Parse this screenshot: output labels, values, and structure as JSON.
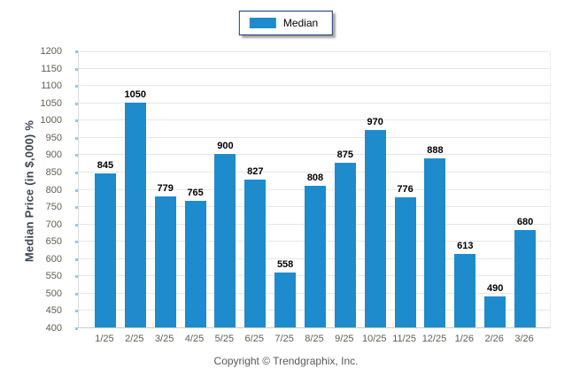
{
  "legend": {
    "items": [
      {
        "label": "Median",
        "color": "#1e8bcd"
      }
    ]
  },
  "footer": {
    "copyright": "Copyright © Trendgraphix, Inc."
  },
  "chart_data": {
    "type": "bar",
    "title": "",
    "categories": [
      "1/25",
      "2/25",
      "3/25",
      "4/25",
      "5/25",
      "6/25",
      "7/25",
      "8/25",
      "9/25",
      "10/25",
      "11/25",
      "12/25",
      "1/26",
      "2/26",
      "3/26"
    ],
    "series": [
      {
        "name": "Median",
        "values": [
          845,
          1050,
          779,
          765,
          900,
          827,
          558,
          808,
          875,
          970,
          776,
          888,
          613,
          490,
          680
        ]
      }
    ],
    "xlabel": "",
    "ylabel": "Median Price (in $,000) %",
    "ylim": [
      400,
      1200
    ],
    "ytick_step": 50,
    "grid": true,
    "value_labels": true,
    "legend_position": "top-center",
    "colors": {
      "bar": "#1e8bcd",
      "grid": "#e6e6e6",
      "axis_tick": "#9dc3e6",
      "tick_label": "#5f6056",
      "value_label": "#000000",
      "axis_title": "#3f4653",
      "legend_border": "#17376e",
      "footer_text": "#595959"
    }
  }
}
